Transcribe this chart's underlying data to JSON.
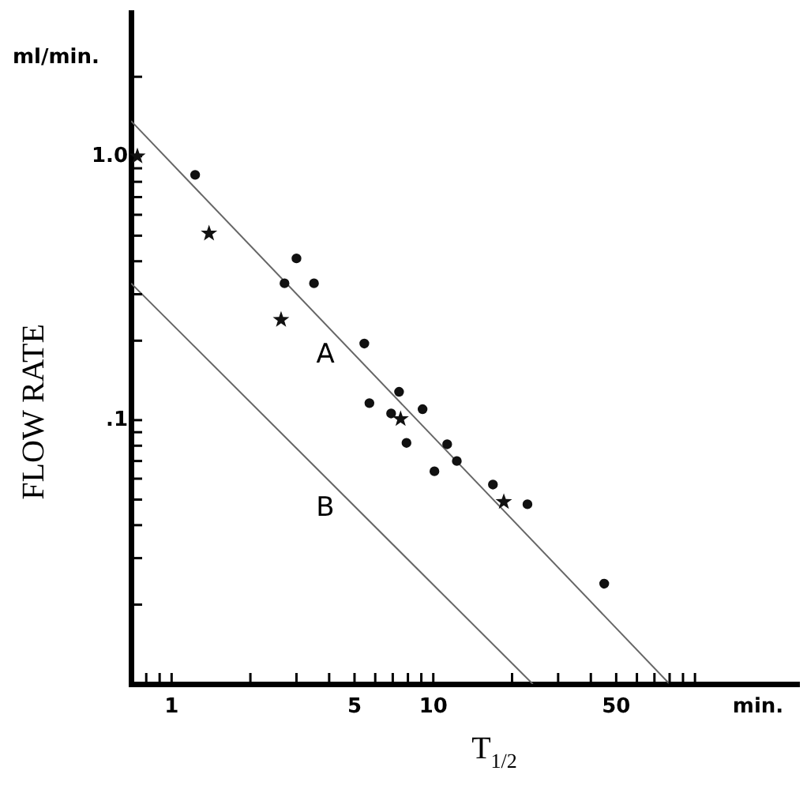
{
  "chart_data": {
    "type": "scatter",
    "xlabel": "T$_{1/2}$",
    "ylabel": "FLOW RATE",
    "log": "xy",
    "grid": false,
    "legend": false,
    "xlim": [
      0.7,
      250
    ],
    "ylim": [
      0.01,
      3.5
    ],
    "xticks": [
      {
        "value": 0.8,
        "label": null
      },
      {
        "value": 0.9,
        "label": null
      },
      1,
      {
        "value": 2,
        "label": null
      },
      {
        "value": 3,
        "label": null
      },
      {
        "value": 4,
        "label": null
      },
      5,
      {
        "value": 6,
        "label": null
      },
      {
        "value": 7,
        "label": null
      },
      {
        "value": 8,
        "label": null
      },
      {
        "value": 9,
        "label": null
      },
      10,
      {
        "value": 20,
        "label": null
      },
      {
        "value": 30,
        "label": null
      },
      {
        "value": 40,
        "label": null
      },
      50,
      {
        "value": 60,
        "label": null
      },
      {
        "value": 70,
        "label": null
      },
      {
        "value": 80,
        "label": null
      },
      {
        "value": 90,
        "label": null
      },
      {
        "value": 100,
        "label": null
      }
    ],
    "yticks": [
      {
        "value": 0.02,
        "label": null
      },
      {
        "value": 0.03,
        "label": null
      },
      {
        "value": 0.04,
        "label": null
      },
      {
        "value": 0.05,
        "label": null
      },
      {
        "value": 0.06,
        "label": null
      },
      {
        "value": 0.07,
        "label": null
      },
      {
        "value": 0.08,
        "label": null
      },
      {
        "value": 0.09,
        "label": null
      },
      {
        "value": 0.1,
        "label": ".1"
      },
      {
        "value": 0.2,
        "label": null
      },
      {
        "value": 0.3,
        "label": null
      },
      {
        "value": 0.4,
        "label": null
      },
      {
        "value": 0.5,
        "label": null
      },
      {
        "value": 0.6,
        "label": null
      },
      {
        "value": 0.7,
        "label": null
      },
      {
        "value": 0.8,
        "label": null
      },
      {
        "value": 0.9,
        "label": null
      },
      {
        "value": 1,
        "label": "1.0"
      },
      {
        "value": 2,
        "label": null
      }
    ],
    "series": [
      {
        "type": "scatter",
        "marker": "circle",
        "color": "#111111",
        "x": [
          1.23,
          3.0,
          2.7,
          3.5,
          5.45,
          7.4,
          5.7,
          6.9,
          9.1,
          7.9,
          11.3,
          12.3,
          10.1,
          16.9,
          22.9,
          45
        ],
        "values": [
          0.85,
          0.41,
          0.33,
          0.33,
          0.195,
          0.128,
          0.116,
          0.106,
          0.11,
          0.082,
          0.081,
          0.07,
          0.064,
          0.057,
          0.048,
          0.024
        ]
      },
      {
        "type": "scatter",
        "marker": "star",
        "color": "#111111",
        "x": [
          0.74,
          1.39,
          2.62,
          7.5,
          18.6
        ],
        "values": [
          1.0,
          0.51,
          0.24,
          0.101,
          0.049
        ]
      },
      {
        "type": "line",
        "name": "A",
        "marker": "none",
        "line_style": "solid",
        "color": "#666666",
        "x": [
          0.7,
          80
        ],
        "values": [
          1.36,
          0.01
        ]
      },
      {
        "type": "line",
        "name": "B",
        "marker": "none",
        "line_style": "solid",
        "color": "#666666",
        "x": [
          0.7,
          24
        ],
        "values": [
          0.33,
          0.01
        ]
      }
    ],
    "annotations": [
      "min.",
      "ml/min."
    ]
  }
}
